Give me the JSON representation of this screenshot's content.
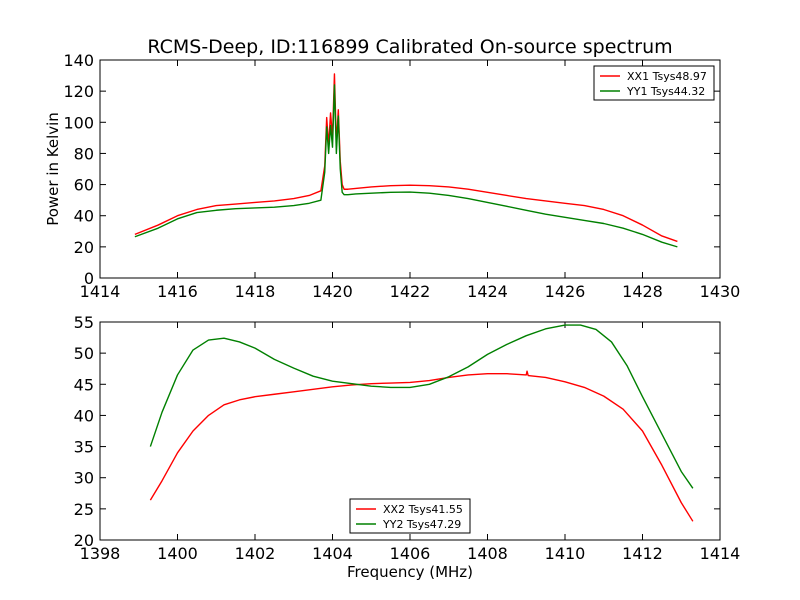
{
  "chart_data": [
    {
      "type": "line",
      "title": "RCMS-Deep, ID:116899 Calibrated On-source spectrum",
      "xlabel": "",
      "ylabel": "Power in Kelvin",
      "xlim": [
        1414,
        1430
      ],
      "ylim": [
        0,
        140
      ],
      "xticks": [
        1414,
        1416,
        1418,
        1420,
        1422,
        1424,
        1426,
        1428,
        1430
      ],
      "yticks": [
        0,
        20,
        40,
        60,
        80,
        100,
        120,
        140
      ],
      "legend_position": "upper-right",
      "series": [
        {
          "name": "XX1 Tsys48.97",
          "color": "#ff0000",
          "x": [
            1414.9,
            1415.5,
            1416.0,
            1416.5,
            1417.0,
            1417.5,
            1418.0,
            1418.5,
            1419.0,
            1419.4,
            1419.7,
            1419.8,
            1419.85,
            1419.9,
            1419.95,
            1420.0,
            1420.05,
            1420.1,
            1420.15,
            1420.2,
            1420.25,
            1420.3,
            1420.4,
            1420.6,
            1421.0,
            1421.5,
            1422.0,
            1422.5,
            1423.0,
            1423.5,
            1424.0,
            1424.5,
            1425.0,
            1425.5,
            1426.0,
            1426.5,
            1427.0,
            1427.5,
            1428.0,
            1428.5,
            1428.9
          ],
          "y": [
            28,
            34,
            40,
            44,
            46.5,
            47.5,
            48.5,
            49.5,
            51,
            53,
            56,
            72,
            103,
            85,
            106,
            90,
            131,
            86,
            108,
            75,
            60,
            57,
            57,
            57.5,
            58.5,
            59.3,
            59.6,
            59.3,
            58.5,
            57,
            55,
            53,
            51,
            49.5,
            48,
            46.5,
            44,
            40,
            34,
            27,
            23.5
          ]
        },
        {
          "name": "YY1 Tsys44.32",
          "color": "#008000",
          "x": [
            1414.9,
            1415.5,
            1416.0,
            1416.5,
            1417.0,
            1417.5,
            1418.0,
            1418.5,
            1419.0,
            1419.4,
            1419.7,
            1419.8,
            1419.85,
            1419.9,
            1419.95,
            1420.0,
            1420.05,
            1420.1,
            1420.15,
            1420.2,
            1420.25,
            1420.3,
            1420.4,
            1420.6,
            1421.0,
            1421.5,
            1422.0,
            1422.5,
            1423.0,
            1423.5,
            1424.0,
            1424.5,
            1425.0,
            1425.5,
            1426.0,
            1426.5,
            1427.0,
            1427.5,
            1428.0,
            1428.5,
            1428.9
          ],
          "y": [
            26.5,
            32,
            38,
            42,
            43.5,
            44.5,
            45,
            45.5,
            46.5,
            48,
            50,
            68,
            97,
            80,
            98,
            84,
            124,
            80,
            104,
            70,
            55,
            53.5,
            53.5,
            54,
            54.5,
            55,
            55.2,
            54.5,
            53,
            51,
            48.5,
            46,
            43.5,
            41,
            39,
            37,
            35,
            32,
            28,
            23,
            20
          ]
        }
      ]
    },
    {
      "type": "line",
      "title": "",
      "xlabel": "Frequency (MHz)",
      "ylabel": "",
      "xlim": [
        1398,
        1414
      ],
      "ylim": [
        20,
        55
      ],
      "xticks": [
        1398,
        1400,
        1402,
        1404,
        1406,
        1408,
        1410,
        1412,
        1414
      ],
      "yticks": [
        20,
        25,
        30,
        35,
        40,
        45,
        50,
        55
      ],
      "legend_position": "lower-center",
      "series": [
        {
          "name": "XX2 Tsys41.55",
          "color": "#ff0000",
          "x": [
            1399.3,
            1399.6,
            1400.0,
            1400.4,
            1400.8,
            1401.2,
            1401.6,
            1402.0,
            1402.5,
            1403.0,
            1403.5,
            1404.0,
            1404.5,
            1405.0,
            1405.5,
            1406.0,
            1406.5,
            1407.0,
            1407.5,
            1408.0,
            1408.5,
            1409.0,
            1409.02,
            1409.05,
            1409.5,
            1410.0,
            1410.5,
            1411.0,
            1411.5,
            1412.0,
            1412.5,
            1413.0,
            1413.3
          ],
          "y": [
            26.4,
            29.5,
            34,
            37.5,
            40,
            41.7,
            42.5,
            43,
            43.4,
            43.8,
            44.2,
            44.6,
            44.9,
            45.1,
            45.2,
            45.3,
            45.6,
            46.1,
            46.5,
            46.7,
            46.7,
            46.5,
            47.1,
            46.4,
            46.1,
            45.4,
            44.5,
            43.1,
            41,
            37.5,
            32,
            26,
            23
          ]
        },
        {
          "name": "YY2 Tsys47.29",
          "color": "#008000",
          "x": [
            1399.3,
            1399.6,
            1400.0,
            1400.4,
            1400.8,
            1401.2,
            1401.6,
            1402.0,
            1402.5,
            1403.0,
            1403.5,
            1404.0,
            1404.5,
            1405.0,
            1405.5,
            1406.0,
            1406.5,
            1407.0,
            1407.5,
            1408.0,
            1408.5,
            1409.0,
            1409.5,
            1410.0,
            1410.4,
            1410.8,
            1411.2,
            1411.6,
            1412.0,
            1412.5,
            1413.0,
            1413.3
          ],
          "y": [
            35,
            40.5,
            46.5,
            50.5,
            52.1,
            52.4,
            51.8,
            50.8,
            49,
            47.6,
            46.3,
            45.5,
            45.1,
            44.7,
            44.5,
            44.5,
            45,
            46.2,
            47.8,
            49.8,
            51.4,
            52.8,
            53.9,
            54.5,
            54.5,
            53.8,
            51.8,
            48,
            43,
            37,
            31,
            28.3
          ]
        }
      ]
    }
  ]
}
